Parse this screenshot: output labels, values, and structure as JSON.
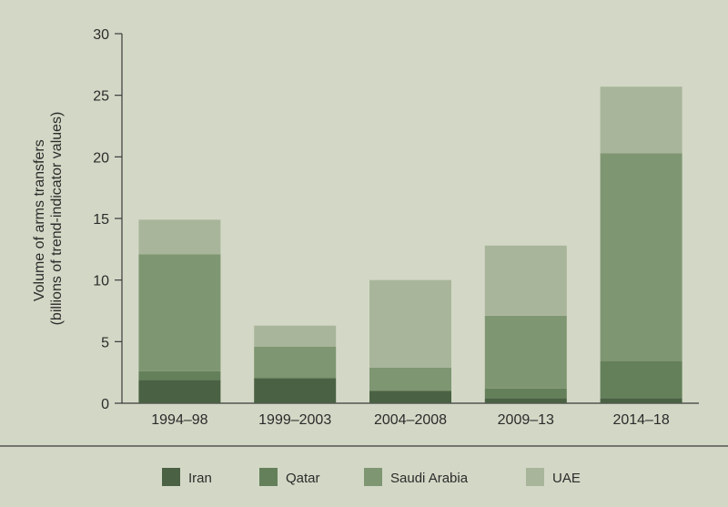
{
  "chart_data": {
    "type": "bar",
    "stacked": true,
    "title": "",
    "xlabel": "",
    "ylabel": "Volume of arms transfers",
    "ylabel_line2": "(billions of trend-indicator values)",
    "ylim": [
      0,
      30
    ],
    "yticks": [
      0,
      5,
      10,
      15,
      20,
      25,
      30
    ],
    "grid": false,
    "legend_position": "bottom",
    "categories": [
      "1994–98",
      "1999–2003",
      "2004–2008",
      "2009–13",
      "2014–18"
    ],
    "series": [
      {
        "name": "Iran",
        "color": "#4a6143",
        "values": [
          1.9,
          2.0,
          1.0,
          0.4,
          0.4
        ]
      },
      {
        "name": "Qatar",
        "color": "#64805a",
        "values": [
          0.7,
          0.1,
          0.0,
          0.8,
          3.0
        ]
      },
      {
        "name": "Saudi Arabia",
        "color": "#7f9672",
        "values": [
          9.5,
          2.5,
          1.9,
          5.9,
          16.9
        ]
      },
      {
        "name": "UAE",
        "color": "#a9b59a",
        "values": [
          2.8,
          1.7,
          7.1,
          5.7,
          5.4
        ]
      }
    ]
  }
}
